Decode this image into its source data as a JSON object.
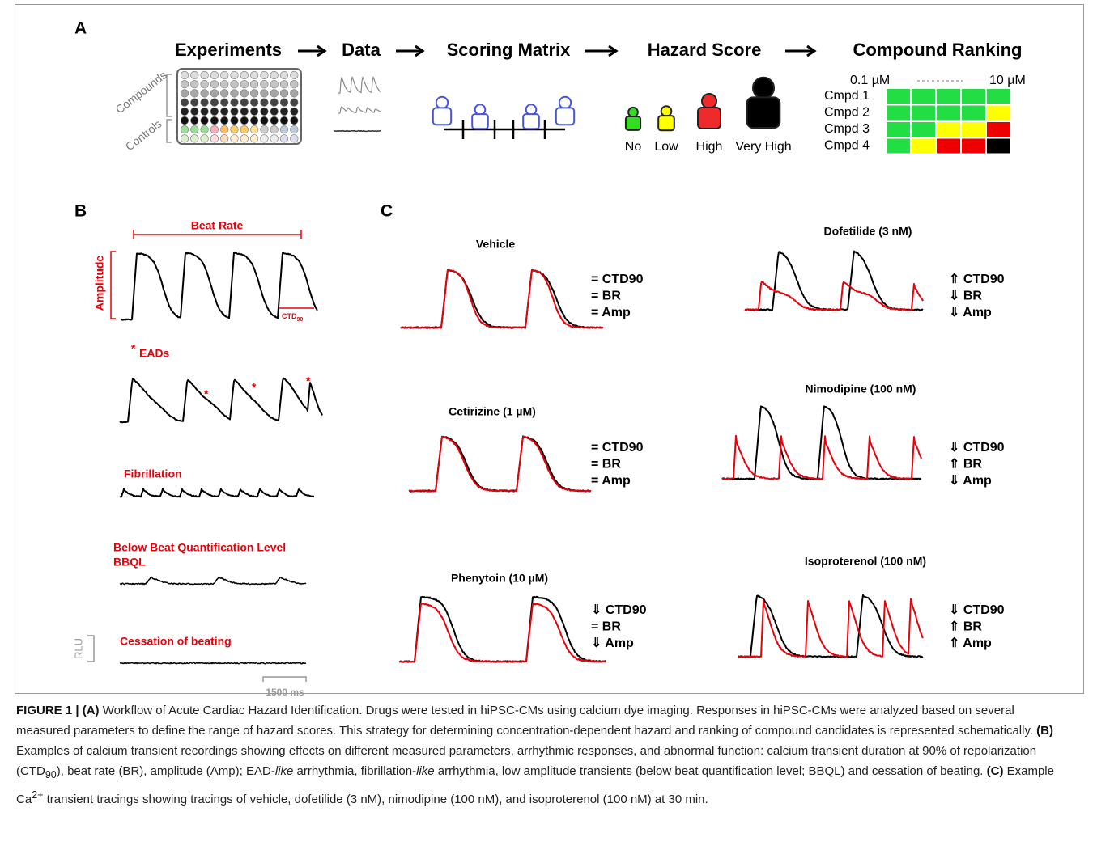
{
  "panel_a": {
    "label": "A",
    "steps": [
      "Experiments",
      "Data",
      "Scoring Matrix",
      "Hazard Score",
      "Compound Ranking"
    ],
    "plate_labels": [
      "Compounds",
      "Controls"
    ],
    "hazard_levels": [
      {
        "label": "No",
        "color": "#33dd22"
      },
      {
        "label": "Low",
        "color": "#ffff00"
      },
      {
        "label": "High",
        "color": "#ee2a2a"
      },
      {
        "label": "Very High",
        "color": "#000000"
      }
    ],
    "ranking": {
      "low_conc": "0.1 µM",
      "high_conc": "10 µM",
      "compounds": [
        {
          "name": "Cmpd 1",
          "cells": [
            "#22dd44",
            "#22dd44",
            "#22dd44",
            "#22dd44",
            "#22dd44"
          ]
        },
        {
          "name": "Cmpd 2",
          "cells": [
            "#22dd44",
            "#22dd44",
            "#22dd44",
            "#22dd44",
            "#ffff00"
          ]
        },
        {
          "name": "Cmpd 3",
          "cells": [
            "#22dd44",
            "#22dd44",
            "#ffff00",
            "#ffff00",
            "#ee0000"
          ]
        },
        {
          "name": "Cmpd 4",
          "cells": [
            "#22dd44",
            "#ffff00",
            "#ee0000",
            "#ee0000",
            "#000000"
          ]
        }
      ]
    }
  },
  "panel_b": {
    "label": "B",
    "beat_rate": "Beat Rate",
    "amplitude": "Amplitude",
    "ctd": "CTD",
    "ctd_sub": "90",
    "ead_star": "*",
    "eads": "EADs",
    "fibrillation": "Fibrillation",
    "bbql_title": "Below Beat Quantification Level",
    "bbql": "BBQL",
    "rlu": "RLU",
    "cessation": "Cessation of beating",
    "scale": "1500 ms"
  },
  "panel_c": {
    "label": "C",
    "examples": [
      {
        "title": "Vehicle",
        "effects": [
          "= CTD90",
          "= BR",
          "= Amp"
        ]
      },
      {
        "title": "Cetirizine (1 µM)",
        "effects": [
          "= CTD90",
          "= BR",
          "= Amp"
        ]
      },
      {
        "title": "Phenytoin (10 µM)",
        "effects": [
          "⇓ CTD90",
          "= BR",
          "⇓ Amp"
        ]
      },
      {
        "title": "Dofetilide (3 nM)",
        "effects": [
          "⇑ CTD90",
          "⇓ BR",
          "⇓ Amp"
        ]
      },
      {
        "title": "Nimodipine (100 nM)",
        "effects": [
          "⇓ CTD90",
          "⇑ BR",
          "⇓ Amp"
        ]
      },
      {
        "title": "Isoproterenol (100 nM)",
        "effects": [
          "⇓ CTD90",
          "⇑ BR",
          "⇑ Amp"
        ]
      }
    ]
  },
  "caption": [
    "FIGURE 1 | (A)",
    " Workflow of Acute Cardiac Hazard Identification. Drugs were tested in hiPSC-CMs using calcium dye imaging. Responses in hiPSC-CMs were analyzed based on several measured parameters to define the range of hazard scores. This strategy for determining concentration-dependent hazard and ranking of compound candidates is represented schematically. ",
    "(B)",
    " Examples of calcium transient recordings showing effects on different measured parameters, arrhythmic responses, and abnormal function: calcium transient duration at 90% of repolarization (CTD",
    "90",
    "), beat rate (BR), amplitude (Amp); EAD-",
    "like",
    " arrhythmia, fibrillation-",
    "like",
    " arrhythmia, low amplitude transients (below beat quantification level; BBQL) and cessation of beating. ",
    "(C)",
    " Example Ca",
    "2+",
    " transient tracings showing tracings of vehicle, dofetilide (3 nM), nimodipine (100 nM), and isoproterenol (100 nM) at 30 min."
  ]
}
